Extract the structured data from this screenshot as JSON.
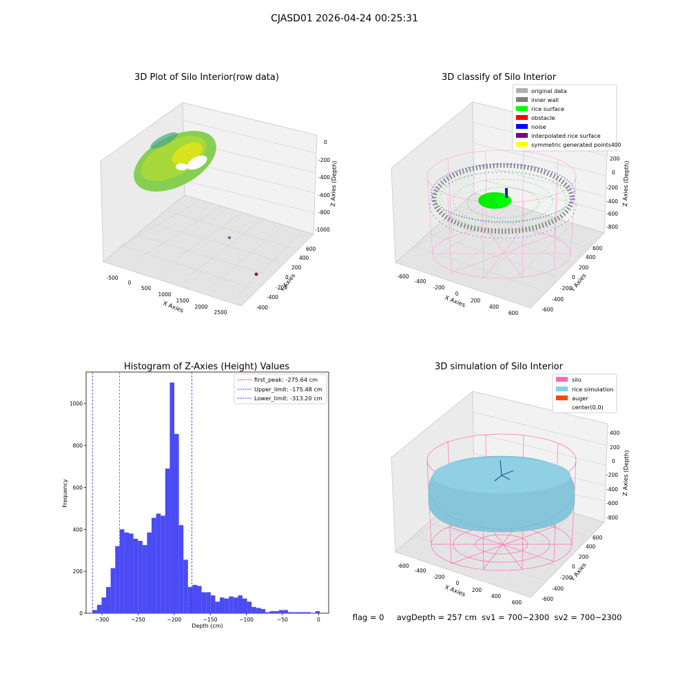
{
  "figure": {
    "suptitle": "CJASD01 2026-04-24 00:25:31",
    "status_text": "flag = 0     avgDepth = 257 cm  sv1 = 700~2300  sv2 = 700~2300"
  },
  "chart_data": [
    {
      "type": "scatter3d",
      "title": "3D Plot of Silo Interior(row data)",
      "xlabel": "X Axies",
      "ylabel": "Y Axies",
      "zlabel": "Z Axies (Depth)",
      "xticks": [
        "-500",
        "0",
        "500",
        "1000",
        "1500",
        "2000",
        "2500"
      ],
      "yticks": [
        "-600",
        "-400",
        "-200",
        "0",
        "200",
        "400",
        "600"
      ],
      "zticks": [
        "-1000",
        "-800",
        "-600",
        "-400",
        "-200",
        "0"
      ],
      "grid": true,
      "colormap": [
        "#3f8f6f",
        "#4fb070",
        "#8cd14a",
        "#c8e02a",
        "#e6e619"
      ]
    },
    {
      "type": "scatter3d",
      "title": "3D classify of Silo Interior",
      "xlabel": "X Axies",
      "ylabel": "Y Axies",
      "zlabel": "Z Axies (Depth)",
      "xticks": [
        "-600",
        "-400",
        "-200",
        "0",
        "200",
        "400",
        "600"
      ],
      "yticks": [
        "-600",
        "-400",
        "-200",
        "0",
        "200",
        "400",
        "600"
      ],
      "zticks": [
        "-800",
        "-600",
        "-400",
        "-200",
        "0",
        "200"
      ],
      "grid": true,
      "legend_position": "top-right",
      "legend": [
        {
          "label": "original data",
          "color": "#b0b0b0"
        },
        {
          "label": "inner wall",
          "color": "#808080"
        },
        {
          "label": "rice surface",
          "color": "#00ff00"
        },
        {
          "label": "obstacle",
          "color": "#ff0000"
        },
        {
          "label": "noise",
          "color": "#0000ff"
        },
        {
          "label": "interpolated rice surface",
          "color": "#800080"
        },
        {
          "label": "symmetric generated points",
          "color": "#ffff00"
        }
      ],
      "zticks_extra": "400"
    },
    {
      "type": "histogram",
      "title": "Histogram of Z-Axies (Height) Values",
      "xlabel": "Depth (cm)",
      "ylabel": "Frequency",
      "xlim": [
        -322,
        14
      ],
      "ylim": [
        0,
        1150
      ],
      "xticks": [
        -300,
        -250,
        -200,
        -150,
        -100,
        -50,
        0
      ],
      "yticks": [
        0,
        200,
        400,
        600,
        800,
        1000
      ],
      "bar_color": "#4b4bf5",
      "bin_start": -313.2,
      "bin_width": 6.3,
      "values": [
        15,
        40,
        75,
        125,
        215,
        320,
        400,
        385,
        380,
        355,
        345,
        325,
        385,
        455,
        475,
        465,
        690,
        1100,
        855,
        420,
        255,
        125,
        135,
        130,
        100,
        100,
        85,
        55,
        75,
        70,
        80,
        75,
        85,
        70,
        55,
        30,
        25,
        20,
        5,
        10,
        10,
        15,
        15,
        5,
        5,
        5,
        5,
        5,
        0,
        10
      ],
      "lines": [
        {
          "label": "first_peak: -275.64 cm",
          "x": -275.64,
          "color": "#e0302a"
        },
        {
          "label": "Upper_limit: -175.48 cm",
          "x": -175.48,
          "color": "#2a2ae0"
        },
        {
          "label": "Lower_limit: -313.20 cm",
          "x": -313.2,
          "color": "#2a2ae0"
        }
      ],
      "legend_position": "top-right"
    },
    {
      "type": "surface3d",
      "title": "3D simulation of Silo Interior",
      "xlabel": "X Axies",
      "ylabel": "Y Axies",
      "zlabel": "Z Axies (Depth)",
      "xticks": [
        "-600",
        "-400",
        "-200",
        "0",
        "200",
        "400",
        "600"
      ],
      "yticks": [
        "-600",
        "-400",
        "-200",
        "0",
        "200",
        "400",
        "600"
      ],
      "zticks": [
        "-800",
        "-600",
        "-400",
        "-200",
        "0",
        "200",
        "400"
      ],
      "grid": true,
      "legend_position": "top-right",
      "legend": [
        {
          "label": "silo",
          "color": "#ff69b4"
        },
        {
          "label": "rice simulation",
          "color": "#87ceeb"
        },
        {
          "label": "auger",
          "color": "#ff4500"
        },
        {
          "label": "center(0,0)",
          "color": "#ffffff"
        }
      ]
    }
  ]
}
